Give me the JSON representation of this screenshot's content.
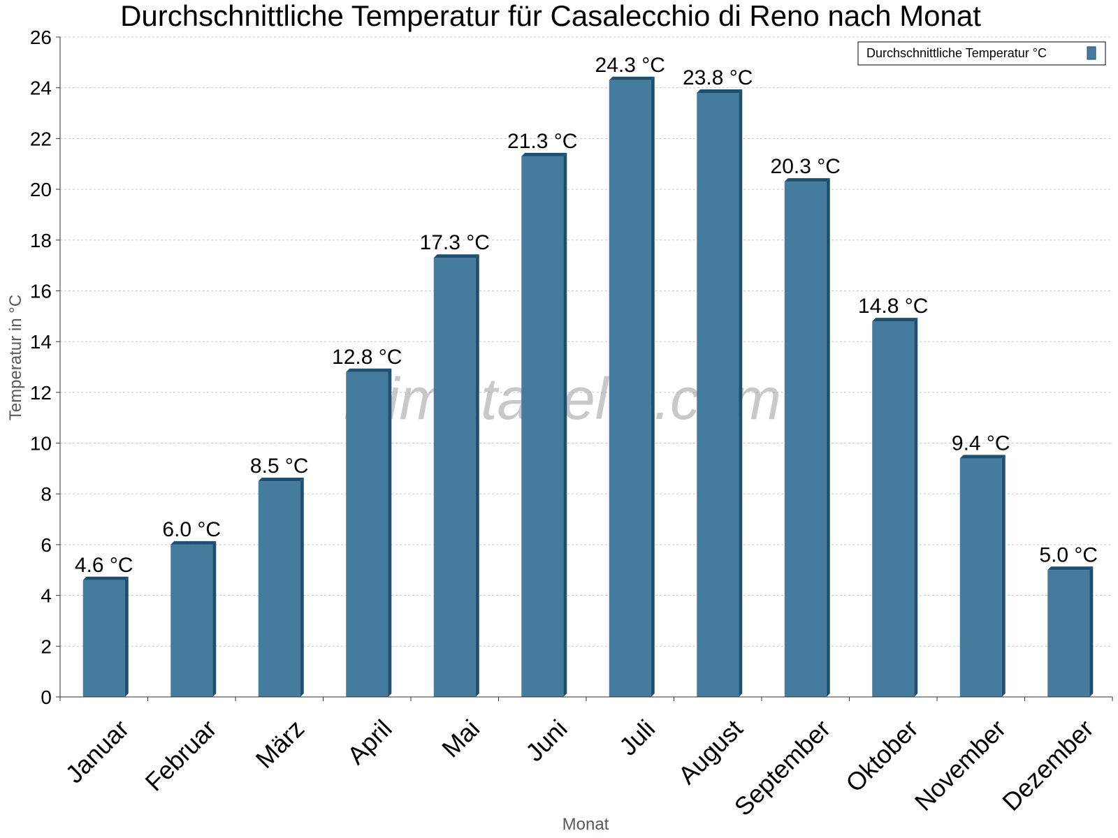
{
  "colors": {
    "bar": "#457b9d",
    "bar_side": "#1f4f6f",
    "bar_top": "#1f4f6f",
    "grid": "#c8c8c8",
    "axis": "#333333"
  },
  "watermark": "klimatabelle.com",
  "chart_data": {
    "type": "bar",
    "title": "Durchschnittliche Temperatur für Casalecchio di Reno nach Monat",
    "xlabel": "Monat",
    "ylabel": "Temperatur in °C",
    "ylim": [
      0,
      26
    ],
    "ytick_step": 2,
    "grid": true,
    "legend_position": "top-right",
    "categories": [
      "Januar",
      "Februar",
      "März",
      "April",
      "Mai",
      "Juni",
      "Juli",
      "August",
      "September",
      "Oktober",
      "November",
      "Dezember"
    ],
    "series": [
      {
        "name": "Durchschnittliche Temperatur °C",
        "values": [
          4.6,
          6.0,
          8.5,
          12.8,
          17.3,
          21.3,
          24.3,
          23.8,
          20.3,
          14.8,
          9.4,
          5.0
        ],
        "labels": [
          "4.6 °C",
          "6.0 °C",
          "8.5 °C",
          "12.8 °C",
          "17.3 °C",
          "21.3 °C",
          "24.3 °C",
          "23.8 °C",
          "20.3 °C",
          "14.8 °C",
          "9.4 °C",
          "5.0 °C"
        ]
      }
    ]
  }
}
